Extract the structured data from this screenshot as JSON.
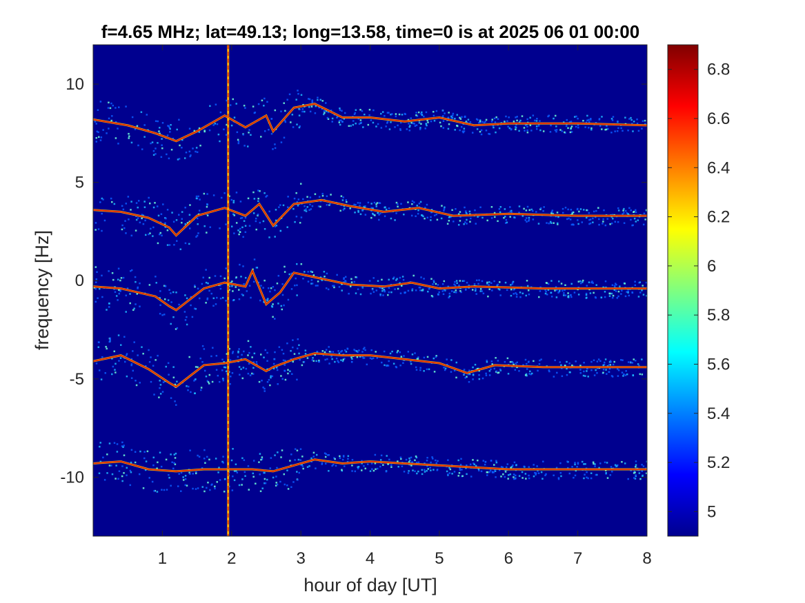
{
  "chart_data": {
    "type": "heatmap",
    "title": "f=4.65 MHz;  lat=49.13; long=13.58, time=0 is at 2025 06 01 00:00",
    "xlabel": "hour of day [UT]",
    "ylabel": "frequency [Hz]",
    "xlim": [
      0,
      8
    ],
    "ylim": [
      -13,
      12
    ],
    "x_ticks": [
      1,
      2,
      3,
      4,
      5,
      6,
      7,
      8
    ],
    "y_ticks": [
      -10,
      -5,
      0,
      5,
      10
    ],
    "colorbar": {
      "colormap": "jet",
      "range": [
        4.9,
        6.9
      ],
      "ticks": [
        5,
        5.2,
        5.4,
        5.6,
        5.8,
        6,
        6.2,
        6.4,
        6.6,
        6.8
      ]
    },
    "background_color": "#00008f",
    "vertical_line_hour": 1.95,
    "series": [
      {
        "baseline_hz": 8.0,
        "points": [
          [
            0,
            8.2
          ],
          [
            0.5,
            7.9
          ],
          [
            0.9,
            7.5
          ],
          [
            1.2,
            7.1
          ],
          [
            1.5,
            7.6
          ],
          [
            1.9,
            8.4
          ],
          [
            2.2,
            7.8
          ],
          [
            2.5,
            8.4
          ],
          [
            2.6,
            7.6
          ],
          [
            2.9,
            8.8
          ],
          [
            3.2,
            9.0
          ],
          [
            3.6,
            8.3
          ],
          [
            4.0,
            8.3
          ],
          [
            4.5,
            8.1
          ],
          [
            5.0,
            8.3
          ],
          [
            5.5,
            7.9
          ],
          [
            6.0,
            8.0
          ],
          [
            7.0,
            8.0
          ],
          [
            8.0,
            7.9
          ]
        ]
      },
      {
        "baseline_hz": 3.5,
        "points": [
          [
            0,
            3.6
          ],
          [
            0.4,
            3.5
          ],
          [
            0.8,
            3.2
          ],
          [
            1.1,
            2.7
          ],
          [
            1.2,
            2.3
          ],
          [
            1.5,
            3.3
          ],
          [
            1.9,
            3.7
          ],
          [
            2.2,
            3.3
          ],
          [
            2.4,
            3.9
          ],
          [
            2.6,
            2.8
          ],
          [
            2.9,
            3.9
          ],
          [
            3.3,
            4.1
          ],
          [
            3.7,
            3.8
          ],
          [
            4.2,
            3.5
          ],
          [
            4.7,
            3.7
          ],
          [
            5.2,
            3.3
          ],
          [
            6.0,
            3.4
          ],
          [
            7.0,
            3.3
          ],
          [
            8.0,
            3.3
          ]
        ]
      },
      {
        "baseline_hz": -0.3,
        "points": [
          [
            0,
            -0.3
          ],
          [
            0.4,
            -0.4
          ],
          [
            0.9,
            -0.8
          ],
          [
            1.1,
            -1.3
          ],
          [
            1.2,
            -1.5
          ],
          [
            1.6,
            -0.4
          ],
          [
            1.9,
            -0.1
          ],
          [
            2.2,
            -0.3
          ],
          [
            2.3,
            0.5
          ],
          [
            2.5,
            -1.2
          ],
          [
            2.7,
            -0.6
          ],
          [
            2.9,
            0.4
          ],
          [
            3.3,
            0.1
          ],
          [
            3.7,
            -0.2
          ],
          [
            4.2,
            -0.3
          ],
          [
            4.6,
            -0.1
          ],
          [
            5.0,
            -0.4
          ],
          [
            5.5,
            -0.3
          ],
          [
            6.5,
            -0.4
          ],
          [
            8.0,
            -0.4
          ]
        ]
      },
      {
        "baseline_hz": -4.1,
        "points": [
          [
            0,
            -4.1
          ],
          [
            0.4,
            -3.8
          ],
          [
            0.8,
            -4.5
          ],
          [
            1.1,
            -5.2
          ],
          [
            1.2,
            -5.4
          ],
          [
            1.6,
            -4.3
          ],
          [
            1.9,
            -4.2
          ],
          [
            2.2,
            -4.0
          ],
          [
            2.5,
            -4.6
          ],
          [
            2.6,
            -4.4
          ],
          [
            2.9,
            -4.0
          ],
          [
            3.2,
            -3.7
          ],
          [
            3.6,
            -3.8
          ],
          [
            4.0,
            -3.8
          ],
          [
            4.5,
            -4.0
          ],
          [
            5.0,
            -4.2
          ],
          [
            5.4,
            -4.7
          ],
          [
            5.8,
            -4.3
          ],
          [
            6.5,
            -4.4
          ],
          [
            8.0,
            -4.4
          ]
        ]
      },
      {
        "baseline_hz": -9.5,
        "points": [
          [
            0,
            -9.3
          ],
          [
            0.4,
            -9.2
          ],
          [
            0.8,
            -9.6
          ],
          [
            1.2,
            -9.7
          ],
          [
            1.6,
            -9.6
          ],
          [
            1.9,
            -9.6
          ],
          [
            2.3,
            -9.6
          ],
          [
            2.6,
            -9.7
          ],
          [
            2.9,
            -9.4
          ],
          [
            3.2,
            -9.1
          ],
          [
            3.6,
            -9.3
          ],
          [
            4.0,
            -9.2
          ],
          [
            4.5,
            -9.3
          ],
          [
            5.0,
            -9.4
          ],
          [
            5.5,
            -9.5
          ],
          [
            6.0,
            -9.6
          ],
          [
            7.0,
            -9.6
          ],
          [
            8.0,
            -9.6
          ]
        ]
      }
    ]
  }
}
